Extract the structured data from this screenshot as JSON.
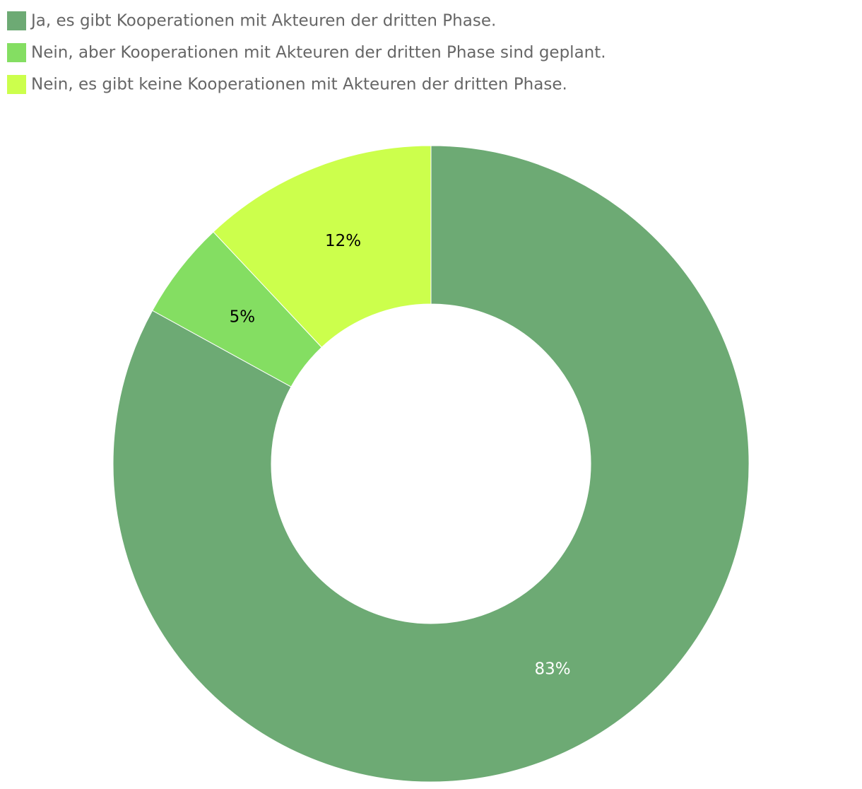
{
  "chart_data": {
    "type": "pie",
    "donut": true,
    "legend": "top-left",
    "categories": [
      "Ja, es gibt Kooperationen mit Akteuren der dritten Phase.",
      "Nein, aber Kooperationen mit Akteuren der dritten Phase sind geplant.",
      "Nein, es gibt keine Kooperationen mit Akteuren der dritten Phase."
    ],
    "values": [
      83,
      5,
      12
    ],
    "value_labels": [
      "83%",
      "5%",
      "12%"
    ],
    "colors": [
      "#6daa74",
      "#84de62",
      "#ccff4c"
    ],
    "value_label_colors": [
      "#ffffff",
      "#000000",
      "#000000"
    ]
  }
}
